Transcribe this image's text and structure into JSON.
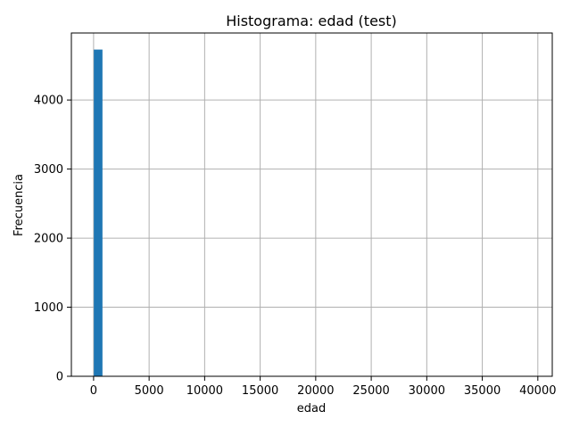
{
  "chart_data": {
    "type": "bar",
    "title": "Histograma: edad (test)",
    "xlabel": "edad",
    "ylabel": "Frecuencia",
    "xlim": [
      -2000,
      41300
    ],
    "ylim": [
      0,
      4970
    ],
    "x_ticks": [
      0,
      5000,
      10000,
      15000,
      20000,
      25000,
      30000,
      35000,
      40000
    ],
    "x_tick_labels": [
      "0",
      "5000",
      "10000",
      "15000",
      "20000",
      "25000",
      "30000",
      "35000",
      "40000"
    ],
    "y_ticks": [
      0,
      1000,
      2000,
      3000,
      4000
    ],
    "y_tick_labels": [
      "0",
      "1000",
      "2000",
      "3000",
      "4000"
    ],
    "grid": true,
    "bar_color": "#1f77b4",
    "bins": [
      {
        "x0": 20,
        "x1": 800,
        "count": 4730
      }
    ]
  }
}
